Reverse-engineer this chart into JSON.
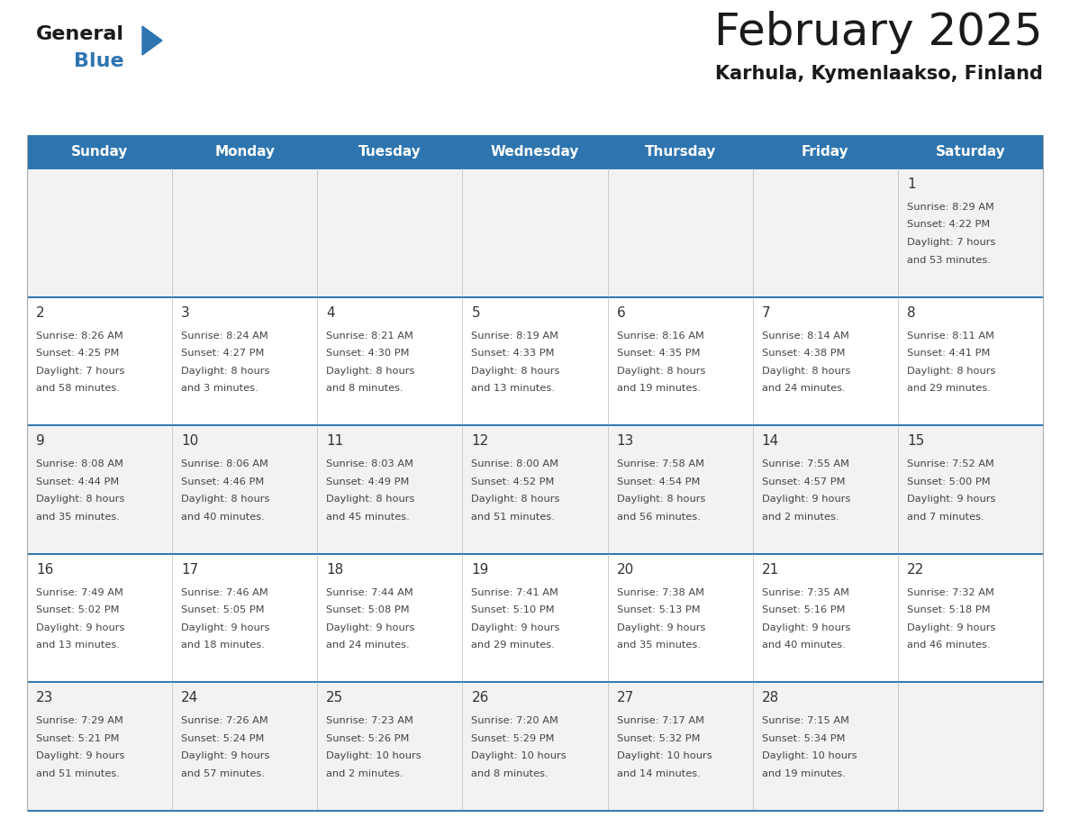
{
  "title": "February 2025",
  "subtitle": "Karhula, Kymenlaakso, Finland",
  "header_color": "#2e75b0",
  "header_text_color": "#ffffff",
  "day_names": [
    "Sunday",
    "Monday",
    "Tuesday",
    "Wednesday",
    "Thursday",
    "Friday",
    "Saturday"
  ],
  "bg_color": "#ffffff",
  "cell_bg_odd": "#f2f2f2",
  "cell_bg_even": "#ffffff",
  "border_color": "#2e75b0",
  "date_color": "#333333",
  "info_color": "#444444",
  "title_color": "#1a1a1a",
  "subtitle_color": "#1a1a1a",
  "logo_general_color": "#1a1a1a",
  "logo_blue_color": "#2e75b0",
  "weeks": [
    [
      null,
      null,
      null,
      null,
      null,
      null,
      {
        "day": 1,
        "sunrise": "8:29 AM",
        "sunset": "4:22 PM",
        "daylight": "7 hours",
        "daylight2": "and 53 minutes."
      }
    ],
    [
      {
        "day": 2,
        "sunrise": "8:26 AM",
        "sunset": "4:25 PM",
        "daylight": "7 hours",
        "daylight2": "and 58 minutes."
      },
      {
        "day": 3,
        "sunrise": "8:24 AM",
        "sunset": "4:27 PM",
        "daylight": "8 hours",
        "daylight2": "and 3 minutes."
      },
      {
        "day": 4,
        "sunrise": "8:21 AM",
        "sunset": "4:30 PM",
        "daylight": "8 hours",
        "daylight2": "and 8 minutes."
      },
      {
        "day": 5,
        "sunrise": "8:19 AM",
        "sunset": "4:33 PM",
        "daylight": "8 hours",
        "daylight2": "and 13 minutes."
      },
      {
        "day": 6,
        "sunrise": "8:16 AM",
        "sunset": "4:35 PM",
        "daylight": "8 hours",
        "daylight2": "and 19 minutes."
      },
      {
        "day": 7,
        "sunrise": "8:14 AM",
        "sunset": "4:38 PM",
        "daylight": "8 hours",
        "daylight2": "and 24 minutes."
      },
      {
        "day": 8,
        "sunrise": "8:11 AM",
        "sunset": "4:41 PM",
        "daylight": "8 hours",
        "daylight2": "and 29 minutes."
      }
    ],
    [
      {
        "day": 9,
        "sunrise": "8:08 AM",
        "sunset": "4:44 PM",
        "daylight": "8 hours",
        "daylight2": "and 35 minutes."
      },
      {
        "day": 10,
        "sunrise": "8:06 AM",
        "sunset": "4:46 PM",
        "daylight": "8 hours",
        "daylight2": "and 40 minutes."
      },
      {
        "day": 11,
        "sunrise": "8:03 AM",
        "sunset": "4:49 PM",
        "daylight": "8 hours",
        "daylight2": "and 45 minutes."
      },
      {
        "day": 12,
        "sunrise": "8:00 AM",
        "sunset": "4:52 PM",
        "daylight": "8 hours",
        "daylight2": "and 51 minutes."
      },
      {
        "day": 13,
        "sunrise": "7:58 AM",
        "sunset": "4:54 PM",
        "daylight": "8 hours",
        "daylight2": "and 56 minutes."
      },
      {
        "day": 14,
        "sunrise": "7:55 AM",
        "sunset": "4:57 PM",
        "daylight": "9 hours",
        "daylight2": "and 2 minutes."
      },
      {
        "day": 15,
        "sunrise": "7:52 AM",
        "sunset": "5:00 PM",
        "daylight": "9 hours",
        "daylight2": "and 7 minutes."
      }
    ],
    [
      {
        "day": 16,
        "sunrise": "7:49 AM",
        "sunset": "5:02 PM",
        "daylight": "9 hours",
        "daylight2": "and 13 minutes."
      },
      {
        "day": 17,
        "sunrise": "7:46 AM",
        "sunset": "5:05 PM",
        "daylight": "9 hours",
        "daylight2": "and 18 minutes."
      },
      {
        "day": 18,
        "sunrise": "7:44 AM",
        "sunset": "5:08 PM",
        "daylight": "9 hours",
        "daylight2": "and 24 minutes."
      },
      {
        "day": 19,
        "sunrise": "7:41 AM",
        "sunset": "5:10 PM",
        "daylight": "9 hours",
        "daylight2": "and 29 minutes."
      },
      {
        "day": 20,
        "sunrise": "7:38 AM",
        "sunset": "5:13 PM",
        "daylight": "9 hours",
        "daylight2": "and 35 minutes."
      },
      {
        "day": 21,
        "sunrise": "7:35 AM",
        "sunset": "5:16 PM",
        "daylight": "9 hours",
        "daylight2": "and 40 minutes."
      },
      {
        "day": 22,
        "sunrise": "7:32 AM",
        "sunset": "5:18 PM",
        "daylight": "9 hours",
        "daylight2": "and 46 minutes."
      }
    ],
    [
      {
        "day": 23,
        "sunrise": "7:29 AM",
        "sunset": "5:21 PM",
        "daylight": "9 hours",
        "daylight2": "and 51 minutes."
      },
      {
        "day": 24,
        "sunrise": "7:26 AM",
        "sunset": "5:24 PM",
        "daylight": "9 hours",
        "daylight2": "and 57 minutes."
      },
      {
        "day": 25,
        "sunrise": "7:23 AM",
        "sunset": "5:26 PM",
        "daylight": "10 hours",
        "daylight2": "and 2 minutes."
      },
      {
        "day": 26,
        "sunrise": "7:20 AM",
        "sunset": "5:29 PM",
        "daylight": "10 hours",
        "daylight2": "and 8 minutes."
      },
      {
        "day": 27,
        "sunrise": "7:17 AM",
        "sunset": "5:32 PM",
        "daylight": "10 hours",
        "daylight2": "and 14 minutes."
      },
      {
        "day": 28,
        "sunrise": "7:15 AM",
        "sunset": "5:34 PM",
        "daylight": "10 hours",
        "daylight2": "and 19 minutes."
      },
      null
    ]
  ]
}
